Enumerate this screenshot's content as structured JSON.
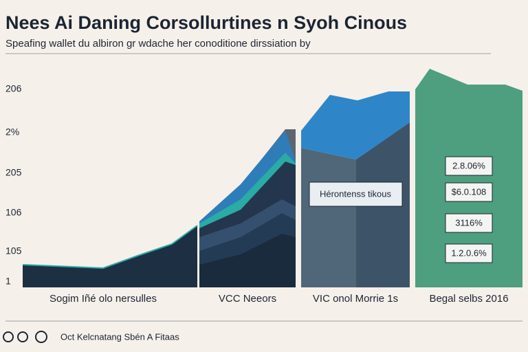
{
  "header": {
    "title": "Nees Ai Daning Corsollurtines n Syoh Cinous",
    "subtitle": "Speafing wallet du albiron gr wdache her conoditione dirssiation by"
  },
  "axis_labels": [
    "206",
    "2%",
    "205",
    "106",
    "105",
    "1"
  ],
  "panels": [
    {
      "label": "Sogim Iñé olo nersulles"
    },
    {
      "label": "VCC Neeors"
    },
    {
      "label": "VIC onol Morrie 1s",
      "box": "Hérontenss tikous"
    },
    {
      "label": "Begal selbs 2016",
      "boxes": [
        "2.8.06%",
        "$6.0.108",
        "3116%",
        "1.2.0.6%"
      ]
    }
  ],
  "footer": {
    "text": "Oct Kelcnatang Sbén A Fitaas"
  }
}
